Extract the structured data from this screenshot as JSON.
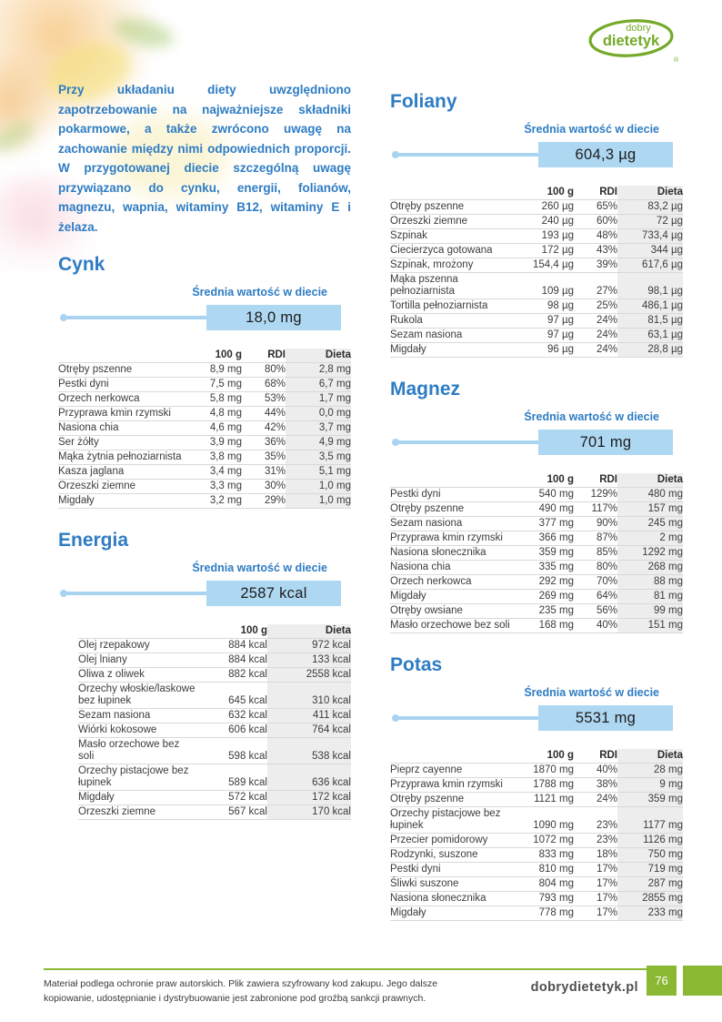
{
  "logo": {
    "line1": "dobry",
    "line2": "dietetyk",
    "registered": "®"
  },
  "intro": "Przy układaniu diety uwzględniono zapotrzebowanie na najważniejsze składniki pokarmowe, a także zwrócono uwagę na zachowanie między nimi odpowiednich proporcji. W przygotowanej diecie szczególną uwagę przywiązano do cynku, energii, folianów, magnezu, wapnia, witaminy B12, witaminy E i żelaza.",
  "avg_label": "Średnia wartość w diecie",
  "sections": [
    {
      "id": "cynk",
      "title": "Cynk",
      "avg_value": "18,0 mg",
      "columns": [
        "100 g",
        "RDI",
        "Dieta"
      ],
      "rows": [
        [
          "Otręby pszenne",
          "8,9 mg",
          "80%",
          "2,8 mg"
        ],
        [
          "Pestki dyni",
          "7,5 mg",
          "68%",
          "6,7 mg"
        ],
        [
          "Orzech nerkowca",
          "5,8 mg",
          "53%",
          "1,7 mg"
        ],
        [
          "Przyprawa kmin rzymski",
          "4,8 mg",
          "44%",
          "0,0 mg"
        ],
        [
          "Nasiona chia",
          "4,6 mg",
          "42%",
          "3,7 mg"
        ],
        [
          "Ser żółty",
          "3,9 mg",
          "36%",
          "4,9 mg"
        ],
        [
          "Mąka żytnia pełnoziarnista",
          "3,8 mg",
          "35%",
          "3,5 mg"
        ],
        [
          "Kasza jaglana",
          "3,4 mg",
          "31%",
          "5,1 mg"
        ],
        [
          "Orzeszki ziemne",
          "3,3 mg",
          "30%",
          "1,0 mg"
        ],
        [
          "Migdały",
          "3,2 mg",
          "29%",
          "1,0 mg"
        ]
      ]
    },
    {
      "id": "energia",
      "title": "Energia",
      "avg_value": "2587 kcal",
      "columns": [
        "100 g",
        "Dieta"
      ],
      "rows": [
        [
          "Olej rzepakowy",
          "884 kcal",
          "972 kcal"
        ],
        [
          "Olej lniany",
          "884 kcal",
          "133 kcal"
        ],
        [
          "Oliwa z oliwek",
          "882 kcal",
          "2558 kcal"
        ],
        [
          "Orzechy włoskie/laskowe\nbez łupinek",
          "645 kcal",
          "310 kcal"
        ],
        [
          "Sezam nasiona",
          "632 kcal",
          "411 kcal"
        ],
        [
          "Wiórki kokosowe",
          "606 kcal",
          "764 kcal"
        ],
        [
          "Masło orzechowe bez soli",
          "598 kcal",
          "538 kcal"
        ],
        [
          "Orzechy pistacjowe bez\nłupinek",
          "589 kcal",
          "636 kcal"
        ],
        [
          "Migdały",
          "572 kcal",
          "172 kcal"
        ],
        [
          "Orzeszki ziemne",
          "567 kcal",
          "170 kcal"
        ]
      ]
    },
    {
      "id": "foliany",
      "title": "Foliany",
      "avg_value": "604,3 µg",
      "columns": [
        "100 g",
        "RDI",
        "Dieta"
      ],
      "rows": [
        [
          "Otręby pszenne",
          "260 µg",
          "65%",
          "83,2 µg"
        ],
        [
          "Orzeszki ziemne",
          "240 µg",
          "60%",
          "72 µg"
        ],
        [
          "Szpinak",
          "193 µg",
          "48%",
          "733,4 µg"
        ],
        [
          "Ciecierzyca gotowana",
          "172 µg",
          "43%",
          "344 µg"
        ],
        [
          "Szpinak, mrożony",
          "154,4 µg",
          "39%",
          "617,6 µg"
        ],
        [
          "Mąka pszenna\npełnoziarnista",
          "109 µg",
          "27%",
          "98,1 µg"
        ],
        [
          "Tortilla pełnoziarnista",
          "98 µg",
          "25%",
          "486,1 µg"
        ],
        [
          "Rukola",
          "97 µg",
          "24%",
          "81,5 µg"
        ],
        [
          "Sezam nasiona",
          "97 µg",
          "24%",
          "63,1 µg"
        ],
        [
          "Migdały",
          "96 µg",
          "24%",
          "28,8 µg"
        ]
      ]
    },
    {
      "id": "magnez",
      "title": "Magnez",
      "avg_value": "701 mg",
      "columns": [
        "100 g",
        "RDI",
        "Dieta"
      ],
      "rows": [
        [
          "Pestki dyni",
          "540 mg",
          "129%",
          "480 mg"
        ],
        [
          "Otręby pszenne",
          "490 mg",
          "117%",
          "157 mg"
        ],
        [
          "Sezam nasiona",
          "377 mg",
          "90%",
          "245 mg"
        ],
        [
          "Przyprawa kmin rzymski",
          "366 mg",
          "87%",
          "2 mg"
        ],
        [
          "Nasiona słonecznika",
          "359 mg",
          "85%",
          "1292 mg"
        ],
        [
          "Nasiona chia",
          "335 mg",
          "80%",
          "268 mg"
        ],
        [
          "Orzech nerkowca",
          "292 mg",
          "70%",
          "88 mg"
        ],
        [
          "Migdały",
          "269 mg",
          "64%",
          "81 mg"
        ],
        [
          "Otręby owsiane",
          "235 mg",
          "56%",
          "99 mg"
        ],
        [
          "Masło orzechowe bez soli",
          "168 mg",
          "40%",
          "151 mg"
        ]
      ]
    },
    {
      "id": "potas",
      "title": "Potas",
      "avg_value": "5531 mg",
      "columns": [
        "100 g",
        "RDI",
        "Dieta"
      ],
      "rows": [
        [
          "Pieprz cayenne",
          "1870 mg",
          "40%",
          "28 mg"
        ],
        [
          "Przyprawa kmin rzymski",
          "1788 mg",
          "38%",
          "9 mg"
        ],
        [
          "Otręby pszenne",
          "1121 mg",
          "24%",
          "359 mg"
        ],
        [
          "Orzechy pistacjowe bez\nłupinek",
          "1090 mg",
          "23%",
          "1177 mg"
        ],
        [
          "Przecier pomidorowy",
          "1072 mg",
          "23%",
          "1126 mg"
        ],
        [
          "Rodzynki, suszone",
          "833 mg",
          "18%",
          "750 mg"
        ],
        [
          "Pestki dyni",
          "810 mg",
          "17%",
          "719 mg"
        ],
        [
          "Śliwki suszone",
          "804 mg",
          "17%",
          "287 mg"
        ],
        [
          "Nasiona słonecznika",
          "793 mg",
          "17%",
          "2855 mg"
        ],
        [
          "Migdały",
          "778 mg",
          "17%",
          "233 mg"
        ]
      ]
    }
  ],
  "footer": {
    "legal": "Materiał podlega ochronie praw autorskich. Plik zawiera szyfrowany kod zakupu. Jego dalsze kopiowanie, udostępnianie i dystrybuowanie jest zabronione pod groźbą sankcji prawnych.",
    "site": "dobrydietetyk.pl",
    "page_number": "76"
  },
  "colors": {
    "accent_blue": "#2e7cc3",
    "badge_blue": "#aed7f2",
    "green": "#8bb832",
    "stripe_gray": "#ededed"
  }
}
